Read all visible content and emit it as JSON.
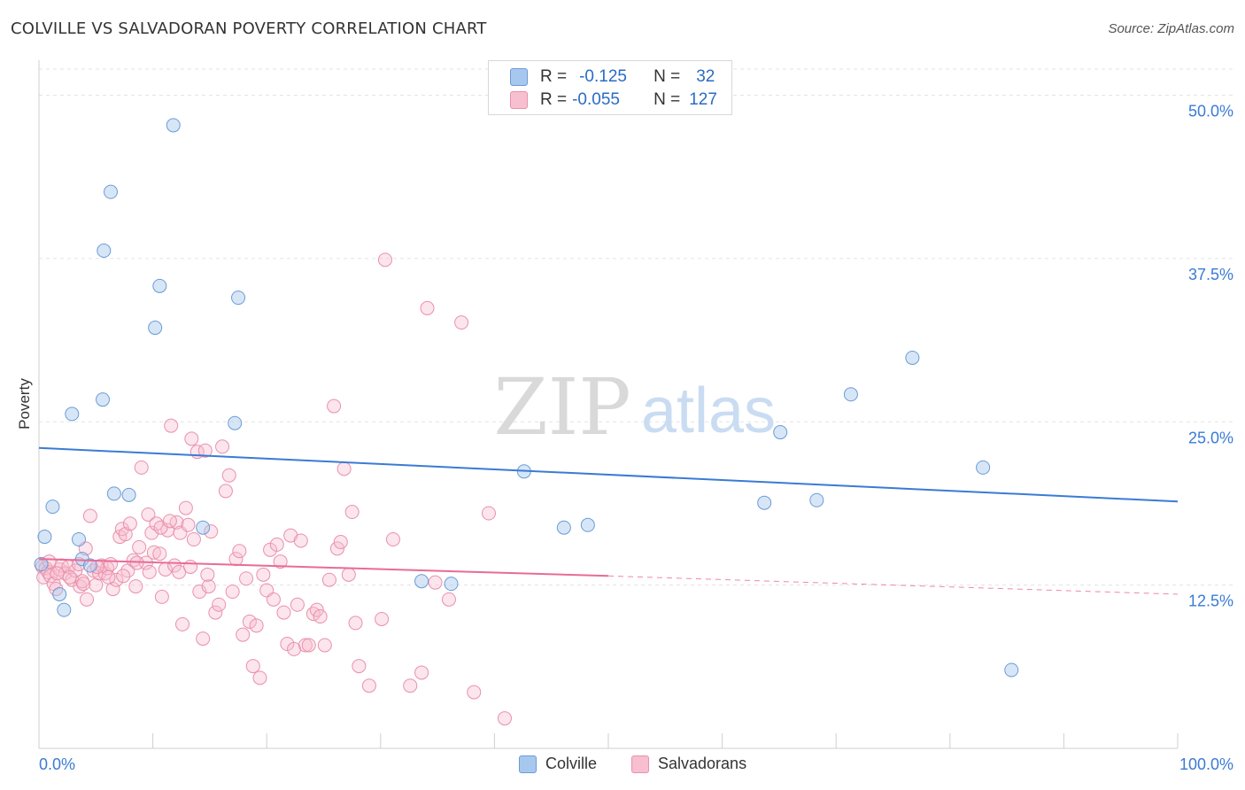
{
  "title": "COLVILLE VS SALVADORAN POVERTY CORRELATION CHART",
  "source": "Source: ZipAtlas.com",
  "watermark": {
    "zip": "ZIP",
    "atlas": "atlas"
  },
  "legend_top": {
    "rows": [
      {
        "r_label": "R =",
        "r_value": "-0.125",
        "n_label": "N =",
        "n_value": "32",
        "color": "#a7c8ee",
        "border": "#6b9bd6"
      },
      {
        "r_label": "R =",
        "r_value": "-0.055",
        "n_label": "N =",
        "n_value": "127",
        "color": "#f7bfd0",
        "border": "#e990ad"
      }
    ]
  },
  "legend_bottom": [
    {
      "label": "Colville",
      "color": "#a7c8ee",
      "border": "#6b9bd6"
    },
    {
      "label": "Salvadorans",
      "color": "#f7bfd0",
      "border": "#e990ad"
    }
  ],
  "colors": {
    "blue": "#3a7bd5",
    "pink": "#e86b98",
    "blue_fill": "rgba(167,200,238,0.45)",
    "pink_fill": "rgba(247,191,208,0.40)",
    "tick_text": "#3a7bd5",
    "grid": "#e3e3e3"
  },
  "chart_data": {
    "type": "scatter",
    "title": "COLVILLE VS SALVADORAN POVERTY CORRELATION CHART",
    "xlabel": "",
    "ylabel": "Poverty",
    "xlim": [
      0,
      100
    ],
    "ylim": [
      0,
      52
    ],
    "x_tick_labels": [
      "0.0%",
      "100.0%"
    ],
    "y_ticks": [
      12.5,
      25.0,
      37.5,
      50.0
    ],
    "y_tick_labels": [
      "12.5%",
      "25.0%",
      "37.5%",
      "50.0%"
    ],
    "grid": true,
    "legend_position": "bottom",
    "series": [
      {
        "name": "Colville",
        "color": "#3a7bd5",
        "r": -0.125,
        "n": 32,
        "trend": {
          "x": [
            0,
            100
          ],
          "y": [
            23.0,
            18.9
          ]
        },
        "points": [
          [
            0.5,
            16.2
          ],
          [
            1.2,
            18.5
          ],
          [
            1.8,
            11.8
          ],
          [
            2.2,
            10.6
          ],
          [
            2.9,
            25.6
          ],
          [
            3.5,
            16.0
          ],
          [
            3.8,
            14.5
          ],
          [
            4.5,
            14.0
          ],
          [
            5.6,
            26.7
          ],
          [
            5.7,
            38.1
          ],
          [
            6.3,
            42.6
          ],
          [
            6.6,
            19.5
          ],
          [
            7.9,
            19.4
          ],
          [
            10.2,
            32.2
          ],
          [
            10.6,
            35.4
          ],
          [
            11.8,
            47.7
          ],
          [
            14.4,
            16.9
          ],
          [
            17.2,
            24.9
          ],
          [
            17.5,
            34.5
          ],
          [
            33.6,
            12.8
          ],
          [
            36.2,
            12.6
          ],
          [
            42.6,
            21.2
          ],
          [
            46.1,
            16.9
          ],
          [
            48.2,
            17.1
          ],
          [
            63.7,
            18.8
          ],
          [
            65.1,
            24.2
          ],
          [
            68.3,
            19.0
          ],
          [
            71.3,
            27.1
          ],
          [
            76.7,
            29.9
          ],
          [
            82.9,
            21.5
          ],
          [
            85.4,
            6.0
          ],
          [
            0.2,
            14.1
          ]
        ]
      },
      {
        "name": "Salvadorans",
        "color": "#e86b98",
        "r": -0.055,
        "n": 127,
        "trend": {
          "x": [
            0,
            50
          ],
          "y": [
            14.5,
            13.2
          ]
        },
        "trend_dashed": {
          "x": [
            50,
            100
          ],
          "y": [
            13.2,
            11.8
          ]
        },
        "points": [
          [
            0.3,
            13.9
          ],
          [
            0.4,
            13.1
          ],
          [
            0.6,
            13.8
          ],
          [
            0.8,
            13.5
          ],
          [
            1.0,
            13.2
          ],
          [
            1.3,
            12.6
          ],
          [
            1.5,
            12.2
          ],
          [
            1.8,
            13.7
          ],
          [
            2.0,
            14.0
          ],
          [
            2.3,
            13.4
          ],
          [
            2.6,
            13.9
          ],
          [
            2.9,
            12.9
          ],
          [
            3.2,
            13.6
          ],
          [
            3.5,
            14.1
          ],
          [
            3.6,
            12.4
          ],
          [
            3.8,
            12.8
          ],
          [
            4.1,
            15.3
          ],
          [
            4.2,
            11.4
          ],
          [
            4.5,
            17.8
          ],
          [
            4.8,
            13.6
          ],
          [
            5.0,
            12.5
          ],
          [
            5.3,
            13.4
          ],
          [
            5.5,
            14.0
          ],
          [
            5.8,
            13.4
          ],
          [
            6.0,
            13.8
          ],
          [
            6.3,
            14.1
          ],
          [
            6.5,
            12.2
          ],
          [
            6.8,
            12.9
          ],
          [
            7.1,
            16.2
          ],
          [
            7.3,
            16.8
          ],
          [
            7.6,
            16.4
          ],
          [
            7.8,
            13.6
          ],
          [
            8.0,
            17.2
          ],
          [
            8.3,
            14.4
          ],
          [
            8.5,
            12.4
          ],
          [
            8.8,
            15.4
          ],
          [
            9.0,
            21.5
          ],
          [
            9.4,
            14.2
          ],
          [
            9.6,
            17.9
          ],
          [
            9.9,
            16.5
          ],
          [
            10.1,
            15.0
          ],
          [
            10.3,
            17.2
          ],
          [
            10.6,
            14.9
          ],
          [
            10.8,
            11.6
          ],
          [
            11.1,
            13.7
          ],
          [
            11.3,
            16.7
          ],
          [
            11.6,
            24.7
          ],
          [
            11.9,
            14.0
          ],
          [
            12.1,
            17.3
          ],
          [
            12.4,
            16.5
          ],
          [
            12.6,
            9.5
          ],
          [
            12.9,
            18.4
          ],
          [
            13.1,
            17.1
          ],
          [
            13.4,
            23.7
          ],
          [
            13.6,
            16.0
          ],
          [
            13.9,
            22.7
          ],
          [
            14.1,
            12.0
          ],
          [
            14.4,
            8.4
          ],
          [
            14.6,
            22.8
          ],
          [
            14.9,
            12.4
          ],
          [
            15.1,
            16.6
          ],
          [
            15.5,
            10.4
          ],
          [
            15.8,
            11.0
          ],
          [
            16.1,
            23.1
          ],
          [
            16.4,
            19.7
          ],
          [
            16.7,
            20.9
          ],
          [
            17.0,
            12.0
          ],
          [
            17.3,
            14.5
          ],
          [
            17.6,
            15.1
          ],
          [
            17.9,
            8.7
          ],
          [
            18.2,
            13.0
          ],
          [
            18.5,
            9.7
          ],
          [
            18.8,
            6.3
          ],
          [
            19.1,
            9.4
          ],
          [
            19.4,
            5.4
          ],
          [
            19.7,
            13.3
          ],
          [
            20.0,
            12.1
          ],
          [
            20.3,
            15.2
          ],
          [
            20.6,
            11.4
          ],
          [
            20.9,
            15.6
          ],
          [
            21.2,
            14.3
          ],
          [
            21.5,
            10.4
          ],
          [
            21.8,
            8.0
          ],
          [
            22.1,
            16.3
          ],
          [
            22.4,
            7.6
          ],
          [
            22.7,
            11.0
          ],
          [
            23.0,
            15.9
          ],
          [
            23.4,
            7.9
          ],
          [
            23.7,
            7.9
          ],
          [
            24.1,
            10.3
          ],
          [
            24.4,
            10.6
          ],
          [
            24.7,
            10.1
          ],
          [
            25.1,
            7.9
          ],
          [
            25.5,
            12.9
          ],
          [
            25.9,
            26.2
          ],
          [
            26.2,
            15.3
          ],
          [
            26.5,
            15.8
          ],
          [
            26.8,
            21.4
          ],
          [
            27.2,
            13.3
          ],
          [
            27.5,
            18.1
          ],
          [
            27.8,
            9.6
          ],
          [
            28.1,
            6.3
          ],
          [
            29.0,
            4.8
          ],
          [
            30.1,
            9.9
          ],
          [
            30.4,
            37.4
          ],
          [
            31.1,
            16.0
          ],
          [
            32.6,
            4.8
          ],
          [
            33.6,
            5.8
          ],
          [
            34.1,
            33.7
          ],
          [
            34.8,
            12.7
          ],
          [
            36.0,
            11.4
          ],
          [
            37.1,
            32.6
          ],
          [
            38.2,
            4.3
          ],
          [
            39.5,
            18.0
          ],
          [
            40.9,
            2.3
          ],
          [
            0.9,
            14.3
          ],
          [
            1.6,
            13.4
          ],
          [
            2.7,
            13.1
          ],
          [
            3.9,
            12.6
          ],
          [
            5.1,
            13.9
          ],
          [
            6.1,
            13.1
          ],
          [
            7.4,
            13.2
          ],
          [
            8.6,
            14.2
          ],
          [
            9.7,
            13.5
          ],
          [
            10.7,
            16.9
          ],
          [
            11.5,
            17.4
          ],
          [
            12.3,
            13.5
          ],
          [
            13.3,
            13.9
          ],
          [
            14.8,
            13.3
          ]
        ]
      }
    ]
  }
}
